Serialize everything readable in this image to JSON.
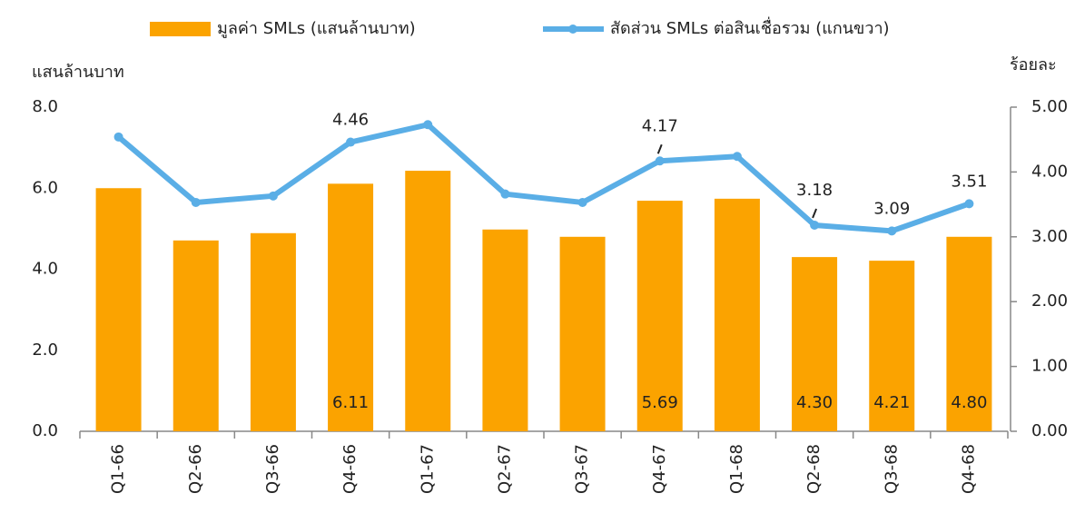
{
  "chart_data": {
    "type": "bar_line",
    "y_label": "แสนล้านบาท",
    "y2_label": "ร้อยละ",
    "categories": [
      "Q1-66",
      "Q2-66",
      "Q3-66",
      "Q4-66",
      "Q1-67",
      "Q2-67",
      "Q3-67",
      "Q4-67",
      "Q1-68",
      "Q2-68",
      "Q3-68",
      "Q4-68"
    ],
    "series": [
      {
        "name": "มูลค่า SMLs (แสนล้านบาท)",
        "type": "bar",
        "color": "#fba300",
        "values": [
          6.0,
          4.71,
          4.89,
          6.11,
          6.43,
          4.98,
          4.8,
          5.69,
          5.74,
          4.3,
          4.21,
          4.8
        ],
        "value_labels": [
          null,
          null,
          null,
          "6.11",
          null,
          null,
          null,
          "5.69",
          null,
          "4.30",
          "4.21",
          "4.80"
        ]
      },
      {
        "name": "สัดส่วน SMLs ต่อสินเชื่อรวม (แกนขวา)",
        "type": "line",
        "axis": "y2",
        "color": "#5aaee6",
        "values": [
          4.54,
          3.53,
          3.63,
          4.46,
          4.73,
          3.66,
          3.53,
          4.17,
          4.24,
          3.18,
          3.09,
          3.51
        ],
        "value_labels": [
          null,
          null,
          null,
          "4.46",
          null,
          null,
          null,
          "4.17",
          null,
          "3.18",
          "3.09",
          "3.51"
        ]
      }
    ],
    "ylim": [
      0,
      8
    ],
    "yticks": [
      {
        "value": 0,
        "label": "0.0"
      },
      {
        "value": 2,
        "label": "2.0"
      },
      {
        "value": 4,
        "label": "4.0"
      },
      {
        "value": 6,
        "label": "6.0"
      },
      {
        "value": 8,
        "label": "8.0"
      }
    ],
    "y2lim": [
      0,
      5
    ],
    "y2ticks": [
      {
        "value": 0,
        "label": "0.00"
      },
      {
        "value": 1,
        "label": "1.00"
      },
      {
        "value": 2,
        "label": "2.00"
      },
      {
        "value": 3,
        "label": "3.00"
      },
      {
        "value": 4,
        "label": "4.00"
      },
      {
        "value": 5,
        "label": "5.00"
      }
    ],
    "grid": false
  }
}
